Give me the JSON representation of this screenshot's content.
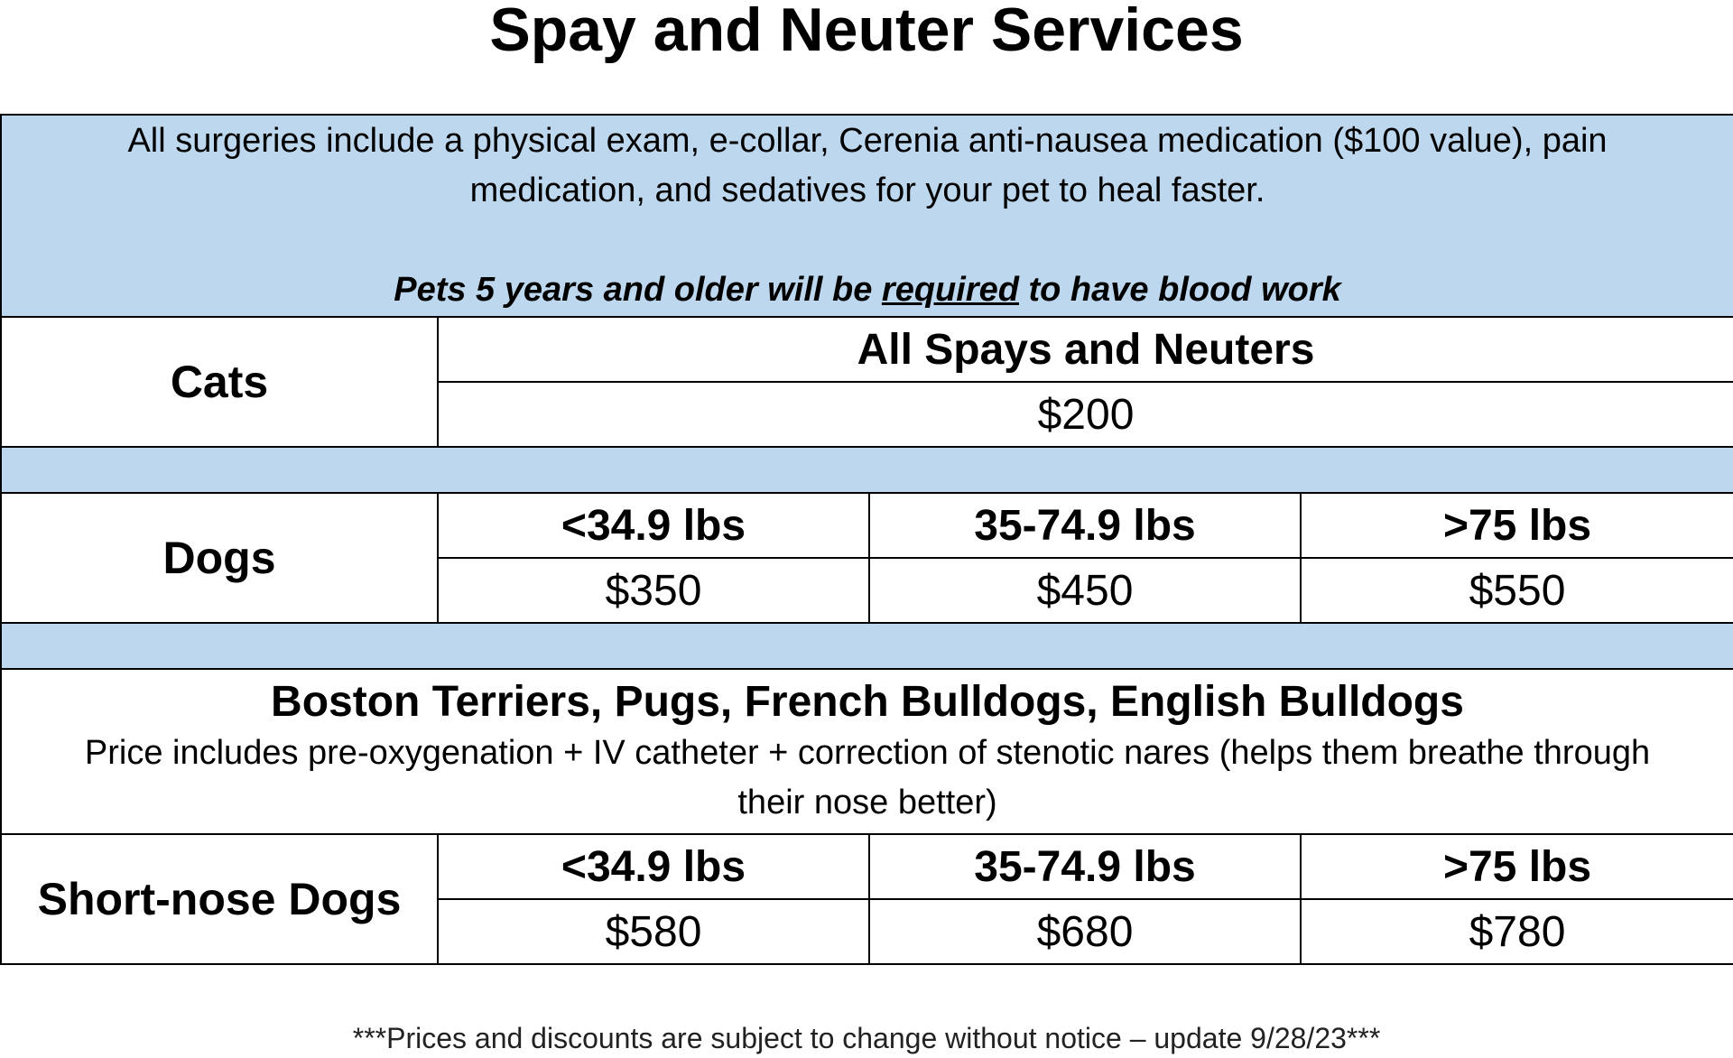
{
  "title": "Spay and Neuter Services",
  "intro": {
    "text": "All surgeries include a physical exam, e-collar, Cerenia anti-nausea medication ($100 value), pain medication, and sedatives for your pet to heal faster.",
    "note_before": "Pets 5 years and older will be ",
    "note_emphasis": "required",
    "note_after": " to have blood work"
  },
  "cats": {
    "label": "Cats",
    "header": "All Spays and Neuters",
    "price": "$200"
  },
  "dogs": {
    "label": "Dogs",
    "weights": [
      "<34.9 lbs",
      "35-74.9 lbs",
      ">75 lbs"
    ],
    "prices": [
      "$350",
      "$450",
      "$550"
    ]
  },
  "breeds": {
    "title": "Boston Terriers, Pugs, French Bulldogs, English Bulldogs",
    "description": "Price includes pre-oxygenation + IV catheter + correction of stenotic nares (helps them breathe through their nose better)"
  },
  "short_nose": {
    "label": "Short-nose Dogs",
    "weights": [
      "<34.9 lbs",
      "35-74.9 lbs",
      ">75 lbs"
    ],
    "prices": [
      "$580",
      "$680",
      "$780"
    ]
  },
  "colors": {
    "band": "#bdd7ee"
  },
  "footer": "***Prices and discounts are subject to change without notice – update 9/28/23***"
}
